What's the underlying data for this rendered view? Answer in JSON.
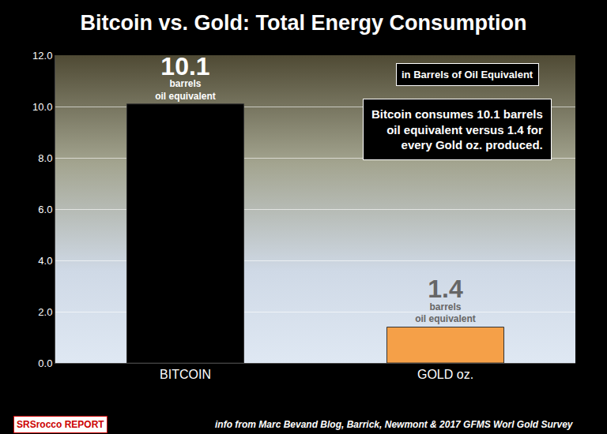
{
  "chart_data": {
    "type": "bar",
    "title": "Bitcoin vs. Gold: Total Energy Consumption",
    "categories": [
      "BITCOIN",
      "GOLD oz."
    ],
    "values": [
      10.1,
      1.4
    ],
    "value_labels": [
      "10.1 barrels oil equivalent",
      "1.4 barrels oil equivalent"
    ],
    "data_labels": true,
    "colors": [
      "#000000",
      "#f5a048"
    ],
    "ylim": [
      0,
      12
    ],
    "yticks": [
      {
        "value": 0,
        "label": "0.0"
      },
      {
        "value": 2,
        "label": "2.0"
      },
      {
        "value": 4,
        "label": "4.0"
      },
      {
        "value": 6,
        "label": "6.0"
      },
      {
        "value": 8,
        "label": "8.0"
      },
      {
        "value": 10,
        "label": "10.0"
      },
      {
        "value": 12,
        "label": "12.0"
      }
    ],
    "grid": true,
    "annotations": [
      "in Barrels of Oil Equivalent",
      "Bitcoin consumes 10.1 barrels oil equivalent versus 1.4 for every Gold oz. produced.",
      "info from Marc Bevand Blog, Barrick, Newmont & 2017 GFMS Worl Gold Survey",
      "SRSrocco REPORT"
    ]
  }
}
